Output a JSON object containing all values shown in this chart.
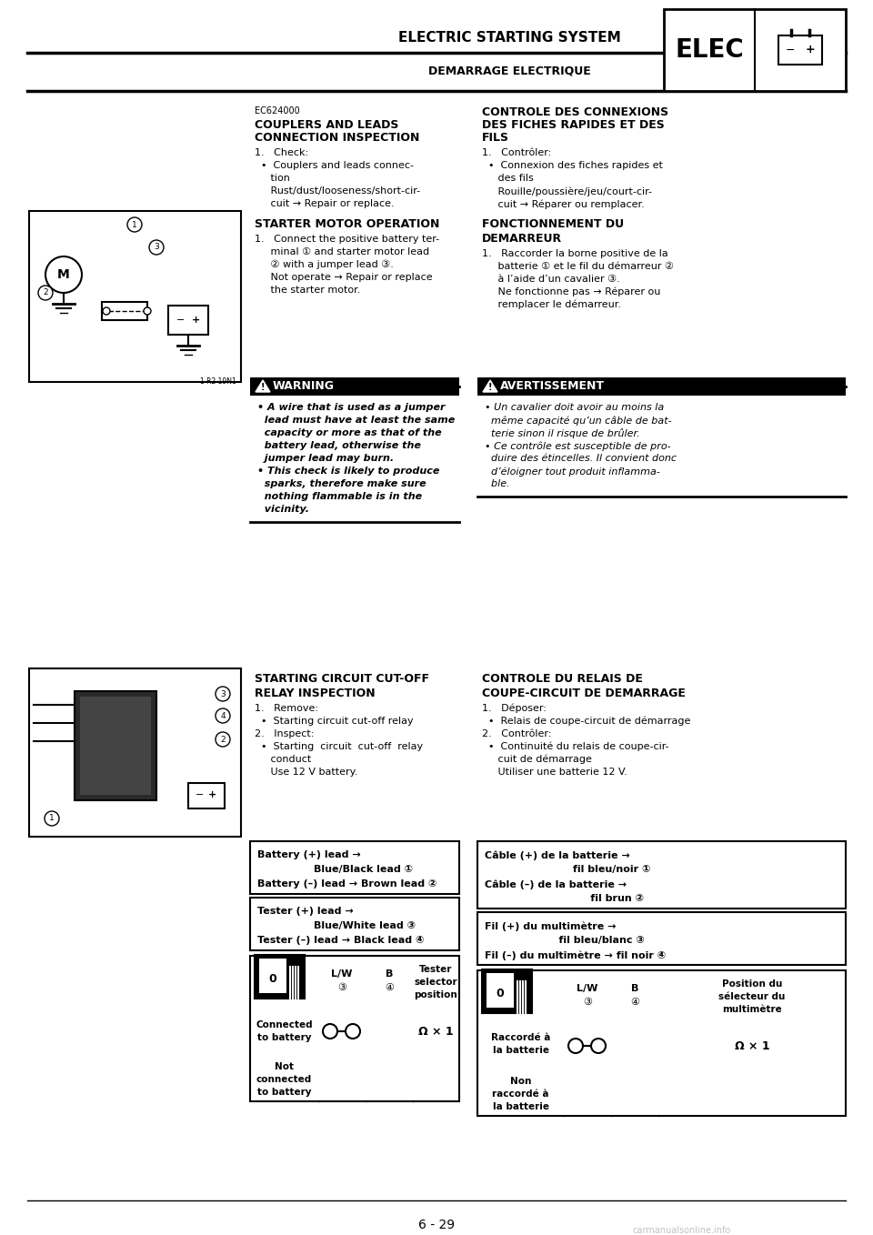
{
  "bg_color": "#ffffff",
  "page_width": 9.6,
  "page_height": 13.58,
  "header_title_en": "ELECTRIC STARTING SYSTEM",
  "header_title_fr": "DEMARRAGE ELECTRIQUE",
  "header_elec": "ELEC",
  "footer_text": "6 - 29",
  "section1_code": "EC624000",
  "section1_title1": "COUPLERS AND LEADS",
  "section1_title2": "CONNECTION INSPECTION",
  "section1_body": [
    "1.   Check:",
    "  •  Couplers and leads connec-",
    "     tion",
    "     Rust/dust/looseness/short-cir-",
    "     cuit → Repair or replace."
  ],
  "section1_fr_title1": "CONTROLE DES CONNEXIONS",
  "section1_fr_title2": "DES FICHES RAPIDES ET DES",
  "section1_fr_title3": "FILS",
  "section1_fr_body": [
    "1.   Contrôler:",
    "  •  Connexion des fiches rapides et",
    "     des fils",
    "     Rouille/poussière/jeu/court-cir-",
    "     cuit → Réparer ou remplacer."
  ],
  "section2_title": "STARTER MOTOR OPERATION",
  "section2_body": [
    "1.   Connect the positive battery ter-",
    "     minal ① and starter motor lead",
    "     ② with a jumper lead ③.",
    "     Not operate → Repair or replace",
    "     the starter motor."
  ],
  "section2_fr_title1": "FONCTIONNEMENT DU",
  "section2_fr_title2": "DEMARREUR",
  "section2_fr_body": [
    "1.   Raccorder la borne positive de la",
    "     batterie ① et le fil du démarreur ②",
    "     à l’aide d’un cavalier ③.",
    "     Ne fonctionne pas → Réparer ou",
    "     remplacer le démarreur."
  ],
  "warning_title": "WARNING",
  "warning_body": [
    "• A wire that is used as a jumper",
    "  lead must have at least the same",
    "  capacity or more as that of the",
    "  battery lead, otherwise the",
    "  jumper lead may burn.",
    "• This check is likely to produce",
    "  sparks, therefore make sure",
    "  nothing flammable is in the",
    "  vicinity."
  ],
  "avertissement_title": "AVERTISSEMENT",
  "avertissement_body": [
    "• Un cavalier doit avoir au moins la",
    "  même capacité qu’un câble de bat-",
    "  terie sinon il risque de brûler.",
    "• Ce contrôle est susceptible de pro-",
    "  duire des étincelles. Il convient donc",
    "  d’éloigner tout produit inflamma-",
    "  ble."
  ],
  "section3_title1": "STARTING CIRCUIT CUT-OFF",
  "section3_title2": "RELAY INSPECTION",
  "section3_body": [
    "1.   Remove:",
    "  •  Starting circuit cut-off relay",
    "2.   Inspect:",
    "  •  Starting  circuit  cut-off  relay",
    "     conduct",
    "     Use 12 V battery."
  ],
  "section3_fr_title1": "CONTROLE DU RELAIS DE",
  "section3_fr_title2": "COUPE-CIRCUIT DE DEMARRAGE",
  "section3_fr_body": [
    "1.   Déposer:",
    "  •  Relais de coupe-circuit de démarrage",
    "2.   Contrôler:",
    "  •  Continuité du relais de coupe-cir-",
    "     cuit de démarrage",
    "     Utiliser une batterie 12 V."
  ],
  "table_en_line1": "Battery (+) lead →",
  "table_en_line2": "                Blue/Black lead ①",
  "table_en_line3": "Battery (–) lead → Brown lead ②",
  "table_en2_line1": "Tester (+) lead →",
  "table_en2_line2": "                Blue/White lead ③",
  "table_en2_line3": "Tester (–) lead → Black lead ④",
  "table_fr_line1": "Câble (+) de la batterie →",
  "table_fr_line2": "                         fil bleu/noir ①",
  "table_fr_line3": "Câble (–) de la batterie →",
  "table_fr_line4": "                              fil brun ②",
  "table_fr2_line1": "Fil (+) du multimètre →",
  "table_fr2_line2": "                     fil bleu/blanc ③",
  "table_fr2_line3": "Fil (–) du multimètre → fil noir ④",
  "lw_label": "L/W",
  "b_label": "B",
  "circle3": "③",
  "circle4": "④",
  "tester_sel": "Tester\nselector\nposition",
  "position_sel": "Position du\nsélecteur du\nmultimètre",
  "connected": "Connected\nto battery",
  "not_connected": "Not\nconnected\nto battery",
  "raccorde": "Raccordé à\nla batterie",
  "non_raccorde": "Non\nraccordé à\nla batterie",
  "omega": "Ω × 1"
}
